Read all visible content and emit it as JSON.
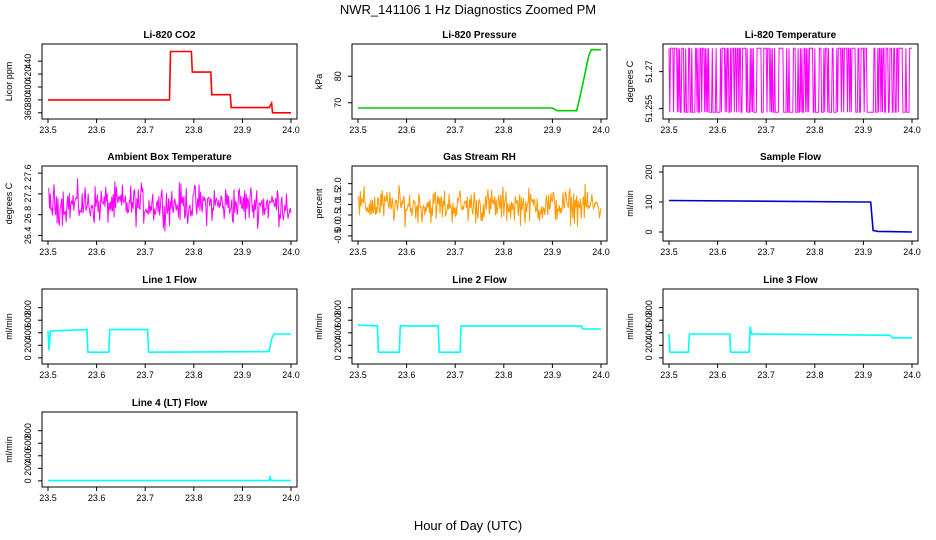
{
  "figure": {
    "title": "NWR_141106  1 Hz Diagnostics Zoomed PM",
    "xlabel": "Hour of Day (UTC)"
  },
  "chart_data": [
    {
      "type": "line",
      "title": "Li-820 CO2",
      "ylabel": "Licor ppm",
      "color": "#ff0000",
      "xlim": [
        23.5,
        24.0
      ],
      "ylim": [
        355,
        462
      ],
      "xticks": [
        "23.5",
        "23.6",
        "23.7",
        "23.8",
        "23.9",
        "24.0"
      ],
      "yticks": [
        360,
        380,
        400,
        420,
        440
      ],
      "series": [
        {
          "x": [
            23.5,
            23.75,
            23.752,
            23.795,
            23.797,
            23.835,
            23.837,
            23.875,
            23.877,
            23.955,
            23.96,
            23.962,
            24.0
          ],
          "y": [
            380,
            380,
            455,
            455,
            423,
            423,
            388,
            388,
            368,
            368,
            375,
            360,
            360
          ]
        }
      ]
    },
    {
      "type": "line",
      "title": "Li-820 Pressure",
      "ylabel": "kPa",
      "color": "#00cc00",
      "xlim": [
        23.5,
        24.0
      ],
      "ylim": [
        65,
        91
      ],
      "xticks": [
        "23.5",
        "23.6",
        "23.7",
        "23.8",
        "23.9",
        "24.0"
      ],
      "yticks": [
        70,
        80
      ],
      "series": [
        {
          "x": [
            23.5,
            23.9,
            23.91,
            23.95,
            23.96,
            23.975,
            23.98,
            24.0
          ],
          "y": [
            68,
            68,
            67,
            67,
            75,
            88,
            90,
            90
          ]
        }
      ]
    },
    {
      "type": "line",
      "title": "Li-820 Temperature",
      "ylabel": "degrees C",
      "color": "#ff00ff",
      "xlim": [
        23.5,
        24.0
      ],
      "ylim": [
        51.252,
        51.28
      ],
      "xticks": [
        "23.5",
        "23.6",
        "23.7",
        "23.8",
        "23.9",
        "24.0"
      ],
      "yticks": [
        51.255,
        51.27
      ],
      "noise": {
        "kind": "toggle",
        "low": 51.2535,
        "high": 51.2795
      }
    },
    {
      "type": "line",
      "title": "Ambient Box Temperature",
      "ylabel": "degrees C",
      "color": "#ff00ff",
      "xlim": [
        23.5,
        24.0
      ],
      "ylim": [
        26.35,
        27.68
      ],
      "xticks": [
        "23.5",
        "23.6",
        "23.7",
        "23.8",
        "23.9",
        "24.0"
      ],
      "yticks": [
        "26.4",
        "26.8",
        "27.2",
        "27.6"
      ],
      "noise": {
        "kind": "band",
        "center": 27.0,
        "amp": 0.55
      }
    },
    {
      "type": "line",
      "title": "Gas Stream RH",
      "ylabel": "percent",
      "color": "#ff9900",
      "xlim": [
        23.5,
        24.0
      ],
      "ylim": [
        -0.6,
        2.7
      ],
      "xticks": [
        "23.5",
        "23.6",
        "23.7",
        "23.8",
        "23.9",
        "24.0"
      ],
      "yticks": [
        "-0.5",
        "0.0",
        "0.5",
        "1.0",
        "1.5",
        "2.0"
      ],
      "noise": {
        "kind": "band",
        "center": 0.95,
        "amp": 1.2
      }
    },
    {
      "type": "line",
      "title": "Sample Flow",
      "ylabel": "ml/min",
      "color": "#0000cc",
      "xlim": [
        23.5,
        24.0
      ],
      "ylim": [
        -20,
        210
      ],
      "xticks": [
        "23.5",
        "23.6",
        "23.7",
        "23.8",
        "23.9",
        "24.0"
      ],
      "yticks": [
        0,
        100,
        200
      ],
      "series": [
        {
          "x": [
            23.5,
            23.9,
            23.915,
            23.92,
            23.93,
            24.0
          ],
          "y": [
            105,
            100,
            100,
            5,
            2,
            0
          ]
        }
      ]
    },
    {
      "type": "line",
      "title": "Line 1 Flow",
      "ylabel": "ml/min",
      "color": "#00ffff",
      "xlim": [
        23.5,
        24.0
      ],
      "ylim": [
        -50,
        1050
      ],
      "xticks": [
        "23.5",
        "23.6",
        "23.7",
        "23.8",
        "23.9",
        "24.0"
      ],
      "yticks": [
        0,
        200,
        400,
        600,
        800
      ],
      "series": [
        {
          "x": [
            23.5,
            23.502,
            23.505,
            23.58,
            23.582,
            23.625,
            23.627,
            23.705,
            23.707,
            23.955,
            23.96,
            23.965,
            24.0
          ],
          "y": [
            430,
            120,
            430,
            450,
            90,
            90,
            450,
            450,
            90,
            100,
            300,
            380,
            380
          ]
        }
      ]
    },
    {
      "type": "line",
      "title": "Line 2 Flow",
      "ylabel": "ml/min",
      "color": "#00ffff",
      "xlim": [
        23.5,
        24.0
      ],
      "ylim": [
        -50,
        1050
      ],
      "xticks": [
        "23.5",
        "23.6",
        "23.7",
        "23.8",
        "23.9",
        "24.0"
      ],
      "yticks": [
        0,
        200,
        400,
        600,
        800
      ],
      "series": [
        {
          "x": [
            23.5,
            23.54,
            23.542,
            23.585,
            23.587,
            23.665,
            23.667,
            23.71,
            23.712,
            23.96,
            23.962,
            24.0
          ],
          "y": [
            520,
            510,
            90,
            90,
            510,
            510,
            90,
            90,
            510,
            510,
            460,
            460
          ]
        }
      ]
    },
    {
      "type": "line",
      "title": "Line 3 Flow",
      "ylabel": "ml/min",
      "color": "#00ffff",
      "xlim": [
        23.5,
        24.0
      ],
      "ylim": [
        -50,
        1050
      ],
      "xticks": [
        "23.5",
        "23.6",
        "23.7",
        "23.8",
        "23.9",
        "24.0"
      ],
      "yticks": [
        0,
        200,
        400,
        600,
        800
      ],
      "series": [
        {
          "x": [
            23.5,
            23.502,
            23.505,
            23.54,
            23.542,
            23.625,
            23.627,
            23.665,
            23.667,
            23.67,
            23.955,
            23.96,
            24.0
          ],
          "y": [
            380,
            90,
            90,
            90,
            380,
            380,
            90,
            90,
            500,
            380,
            360,
            320,
            320
          ]
        }
      ]
    },
    {
      "type": "line",
      "title": "Line 4 (LT) Flow",
      "ylabel": "ml/min",
      "color": "#00ffff",
      "xlim": [
        23.5,
        24.0
      ],
      "ylim": [
        -50,
        1050
      ],
      "xticks": [
        "23.5",
        "23.6",
        "23.7",
        "23.8",
        "23.9",
        "24.0"
      ],
      "yticks": [
        0,
        200,
        400,
        600,
        800
      ],
      "series": [
        {
          "x": [
            23.5,
            23.955,
            23.957,
            23.959,
            24.0
          ],
          "y": [
            5,
            5,
            60,
            5,
            5
          ]
        }
      ]
    }
  ]
}
